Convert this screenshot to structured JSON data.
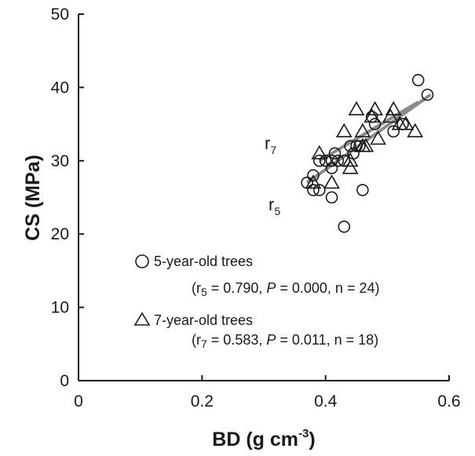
{
  "chart_data": {
    "type": "scatter",
    "xlabel": "BD (g cm",
    "xlabel_sup": "-3",
    "xlabel_close": ")",
    "ylabel": "CS (MPa)",
    "xlim": [
      0,
      0.6
    ],
    "ylim": [
      0,
      50
    ],
    "x_ticks": [
      0,
      0.2,
      0.4,
      0.6
    ],
    "x_tick_labels": [
      "0",
      "0.2",
      "0.4",
      "0.6"
    ],
    "y_ticks": [
      0,
      10,
      20,
      30,
      40,
      50
    ],
    "y_tick_labels": [
      "0",
      "10",
      "20",
      "30",
      "40",
      "50"
    ],
    "grid": false,
    "series": [
      {
        "marker": "circle",
        "legend_label": "5-year-old trees",
        "stats_label": "(r5 = 0.790, P = 0.000, n = 24)",
        "stats_parts": [
          "(r",
          "5",
          " = 0.790, ",
          "P",
          " = 0.000, n = 24)"
        ],
        "line_label": "r",
        "line_label_sub": "5",
        "trend": {
          "x0": 0.37,
          "y0": 27.0,
          "x1": 0.57,
          "y1": 39.0
        },
        "points": [
          [
            0.37,
            27
          ],
          [
            0.38,
            26
          ],
          [
            0.38,
            28
          ],
          [
            0.39,
            26
          ],
          [
            0.39,
            30
          ],
          [
            0.4,
            30
          ],
          [
            0.41,
            25
          ],
          [
            0.41,
            29
          ],
          [
            0.415,
            31
          ],
          [
            0.42,
            30
          ],
          [
            0.43,
            21
          ],
          [
            0.43,
            30
          ],
          [
            0.44,
            32
          ],
          [
            0.445,
            31
          ],
          [
            0.45,
            32
          ],
          [
            0.455,
            32
          ],
          [
            0.46,
            26
          ],
          [
            0.475,
            36
          ],
          [
            0.48,
            35
          ],
          [
            0.51,
            34
          ],
          [
            0.525,
            35
          ],
          [
            0.55,
            41
          ],
          [
            0.565,
            39
          ],
          [
            0.41,
            30
          ]
        ]
      },
      {
        "marker": "triangle",
        "legend_label": "7-year-old trees",
        "stats_label": "(r7 = 0.583, P = 0.011, n = 18)",
        "stats_parts": [
          "(r",
          "7",
          " = 0.583, ",
          "P",
          " = 0.011, n = 18)"
        ],
        "line_label": "r",
        "line_label_sub": "7",
        "trend": {
          "x0": 0.39,
          "y0": 30.0,
          "x1": 0.55,
          "y1": 38.0
        },
        "points": [
          [
            0.38,
            27
          ],
          [
            0.39,
            31
          ],
          [
            0.41,
            27
          ],
          [
            0.43,
            34
          ],
          [
            0.44,
            29
          ],
          [
            0.44,
            30
          ],
          [
            0.45,
            37
          ],
          [
            0.46,
            34
          ],
          [
            0.465,
            32
          ],
          [
            0.475,
            36
          ],
          [
            0.48,
            37
          ],
          [
            0.485,
            33
          ],
          [
            0.505,
            36
          ],
          [
            0.51,
            37
          ],
          [
            0.52,
            35
          ],
          [
            0.53,
            35
          ],
          [
            0.545,
            34
          ],
          [
            0.46,
            32
          ]
        ]
      }
    ]
  }
}
